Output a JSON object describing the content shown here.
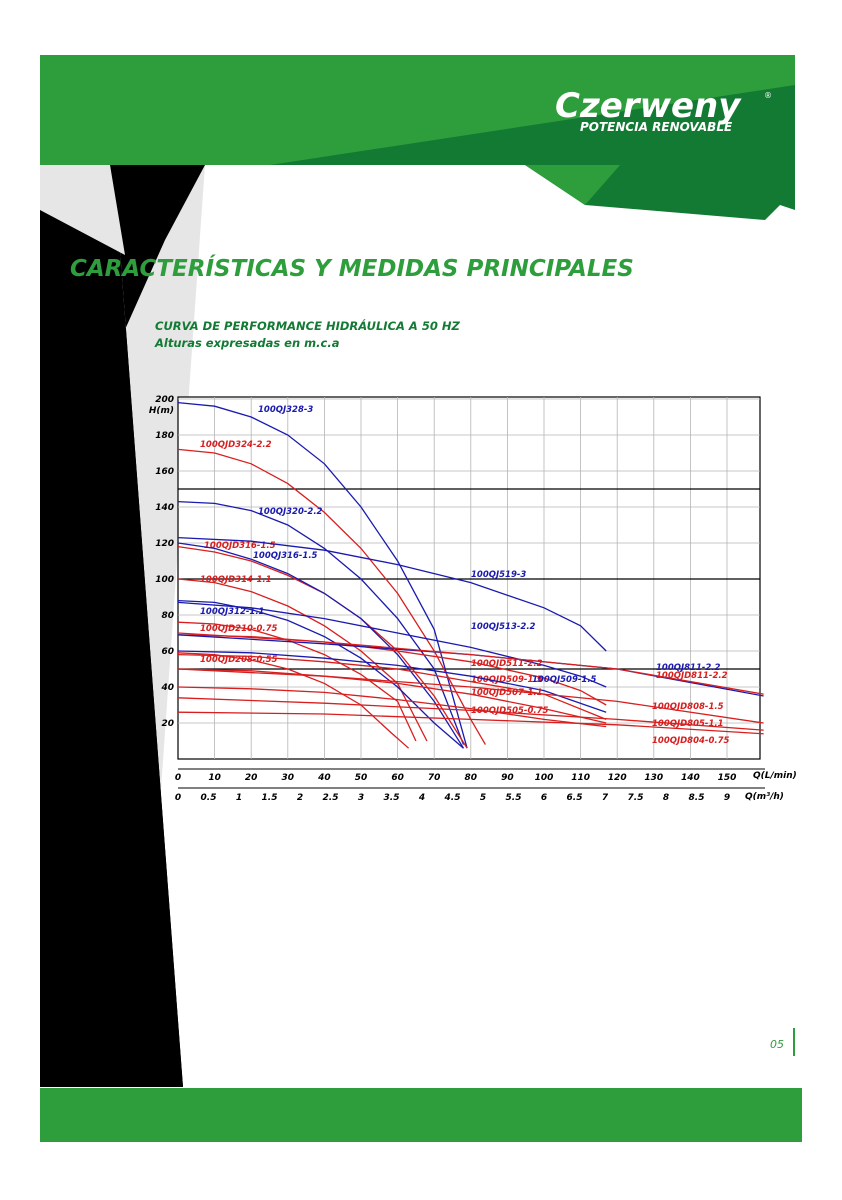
{
  "header": {
    "brand": "Czerweny",
    "registered": "®",
    "slogan": "POTENCIA RENOVABLE"
  },
  "title": "CARACTERÍSTICAS Y MEDIDAS PRINCIPALES",
  "subtitle": "CURVA DE PERFORMANCE HIDRÁULICA A 50 HZ",
  "subtitle2": "Alturas expresadas en m.c.a",
  "page_number": "05",
  "chart_data": {
    "type": "line",
    "y_label": "H(m)",
    "x_label": "Q(L/min)",
    "x2_label": "Q(m³/h)",
    "xlim": [
      0,
      160
    ],
    "xticks": [
      0,
      10,
      20,
      30,
      40,
      50,
      60,
      70,
      80,
      90,
      100,
      110,
      120,
      130,
      140,
      150
    ],
    "x2lim": [
      0,
      9.6
    ],
    "x2ticks": [
      0,
      0.5,
      1,
      1.5,
      2,
      2.5,
      3,
      3.5,
      4,
      4.5,
      5,
      5.5,
      6,
      6.5,
      7,
      7.5,
      8,
      8.5,
      9
    ],
    "ylim": [
      0,
      200
    ],
    "yticks": [
      20,
      40,
      60,
      80,
      100,
      120,
      140,
      160,
      180,
      200
    ],
    "grid": true,
    "emphasis_lines": [
      50,
      100,
      150
    ],
    "series": [
      {
        "name": "100QJ328-3",
        "color": "#1a1ab0",
        "x": [
          0,
          10,
          20,
          30,
          40,
          50,
          60,
          70,
          79
        ],
        "values": [
          198,
          196,
          190,
          180,
          164,
          140,
          110,
          72,
          6
        ]
      },
      {
        "name": "100QJD324-2.2",
        "color": "#d81e1e",
        "x": [
          0,
          10,
          20,
          30,
          40,
          50,
          60,
          70,
          80,
          84
        ],
        "values": [
          172,
          170,
          164,
          153,
          137,
          117,
          92,
          60,
          22,
          8
        ]
      },
      {
        "name": "100QJ320-2.2",
        "color": "#1a1ab0",
        "x": [
          0,
          10,
          20,
          30,
          40,
          50,
          60,
          70,
          78
        ],
        "values": [
          143,
          142,
          138,
          130,
          117,
          100,
          78,
          50,
          8
        ]
      },
      {
        "name": "100QJD316-1.5",
        "color": "#d81e1e",
        "x": [
          0,
          10,
          20,
          30,
          40,
          50,
          60,
          70,
          79
        ],
        "values": [
          118,
          115,
          110,
          102,
          92,
          78,
          60,
          35,
          6
        ]
      },
      {
        "name": "100QJ316-1.5",
        "color": "#1a1ab0",
        "x": [
          0,
          10,
          20,
          30,
          40,
          50,
          60,
          70,
          78
        ],
        "values": [
          120,
          117,
          111,
          103,
          92,
          78,
          58,
          32,
          6
        ]
      },
      {
        "name": "100QJ519-3",
        "color": "#1a1ab0",
        "x": [
          0,
          20,
          40,
          60,
          80,
          100,
          110,
          117
        ],
        "values": [
          123,
          121,
          116,
          108,
          98,
          84,
          74,
          60
        ]
      },
      {
        "name": "100QJD314-1.1",
        "color": "#d81e1e",
        "x": [
          0,
          10,
          20,
          30,
          40,
          50,
          60,
          68
        ],
        "values": [
          100,
          98,
          93,
          85,
          74,
          60,
          42,
          10
        ]
      },
      {
        "name": "100QJ312-1.1",
        "color": "#1a1ab0",
        "x": [
          0,
          10,
          20,
          30,
          40,
          50,
          60,
          70,
          78
        ],
        "values": [
          88,
          87,
          83,
          77,
          68,
          56,
          40,
          20,
          6
        ]
      },
      {
        "name": "100QJD210-0.75",
        "color": "#d81e1e",
        "x": [
          0,
          10,
          20,
          30,
          40,
          50,
          60,
          65
        ],
        "values": [
          76,
          75,
          72,
          66,
          58,
          47,
          32,
          10
        ]
      },
      {
        "name": "100QJ513-2.2",
        "color": "#1a1ab0",
        "x": [
          0,
          20,
          40,
          60,
          80,
          100,
          110,
          117
        ],
        "values": [
          87,
          84,
          78,
          70,
          62,
          52,
          46,
          40
        ]
      },
      {
        "name": "100QJD208-0.55",
        "color": "#d81e1e",
        "x": [
          0,
          10,
          20,
          30,
          40,
          50,
          58,
          63
        ],
        "values": [
          59,
          58,
          55,
          50,
          42,
          30,
          15,
          6
        ]
      },
      {
        "name": "100QJD511-2.2",
        "color": "#d81e1e",
        "x": [
          0,
          20,
          40,
          60,
          80,
          100,
          110,
          117
        ],
        "values": [
          69,
          68,
          65,
          60,
          54,
          45,
          38,
          30
        ]
      },
      {
        "name": "100QJD509-1.5",
        "color": "#d81e1e",
        "x": [
          0,
          20,
          40,
          60,
          80,
          100,
          117
        ],
        "values": [
          58,
          57,
          54,
          50,
          43,
          36,
          22
        ]
      },
      {
        "name": "100QJ509-1.5",
        "color": "#1a1ab0",
        "x": [
          0,
          20,
          40,
          60,
          80,
          100,
          117
        ],
        "values": [
          60,
          59,
          56,
          52,
          46,
          38,
          26
        ]
      },
      {
        "name": "100QJD507-1.1",
        "color": "#d81e1e",
        "x": [
          0,
          20,
          40,
          60,
          80,
          100,
          117
        ],
        "values": [
          50,
          49,
          46,
          42,
          36,
          28,
          20
        ]
      },
      {
        "name": "100QJD505-0.75",
        "color": "#d81e1e",
        "x": [
          0,
          20,
          40,
          60,
          80,
          100,
          117
        ],
        "values": [
          40,
          39,
          37,
          33,
          28,
          22,
          18
        ]
      },
      {
        "name": "100QJ811-2.2",
        "color": "#1a1ab0",
        "x": [
          0,
          40,
          80,
          120,
          160
        ],
        "values": [
          69,
          64,
          58,
          50,
          35
        ]
      },
      {
        "name": "100QJD811-2.2",
        "color": "#d81e1e",
        "x": [
          0,
          40,
          80,
          120,
          160
        ],
        "values": [
          70,
          65,
          58,
          50,
          36
        ]
      },
      {
        "name": "100QJD808-1.5",
        "color": "#d81e1e",
        "x": [
          0,
          40,
          80,
          120,
          160
        ],
        "values": [
          50,
          46,
          40,
          32,
          20
        ]
      },
      {
        "name": "100QJD805-1.1",
        "color": "#d81e1e",
        "x": [
          0,
          40,
          80,
          120,
          160
        ],
        "values": [
          34,
          31,
          27,
          22,
          16
        ]
      },
      {
        "name": "100QJD804-0.75",
        "color": "#d81e1e",
        "x": [
          0,
          40,
          80,
          120,
          160
        ],
        "values": [
          26,
          25,
          22,
          19,
          14
        ]
      }
    ]
  }
}
